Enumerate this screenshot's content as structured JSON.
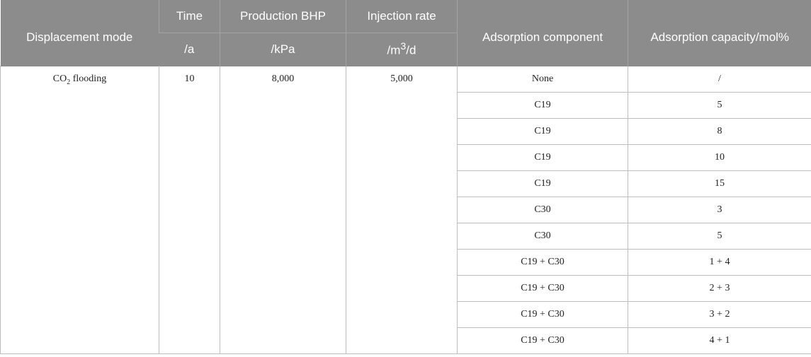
{
  "table": {
    "headers": {
      "displacement_mode": "Displacement mode",
      "time": "Time",
      "time_unit": "/a",
      "production_bhp": "Production BHP",
      "production_bhp_unit": "/kPa",
      "injection_rate": "Injection rate",
      "injection_rate_unit_pre": "/m",
      "injection_rate_unit_sup": "3",
      "injection_rate_unit_post": "/d",
      "adsorption_component": "Adsorption component",
      "adsorption_capacity": "Adsorption capacity/mol%"
    },
    "mode_pre": "CO",
    "mode_sub": "2",
    "mode_post": " flooding",
    "time_value": "10",
    "bhp_value": "8,000",
    "injection_value": "5,000",
    "rows": [
      {
        "component": "None",
        "capacity": "/"
      },
      {
        "component": "C19",
        "capacity": "5"
      },
      {
        "component": "C19",
        "capacity": "8"
      },
      {
        "component": "C19",
        "capacity": "10"
      },
      {
        "component": "C19",
        "capacity": "15"
      },
      {
        "component": "C30",
        "capacity": "3"
      },
      {
        "component": "C30",
        "capacity": "5"
      },
      {
        "component": "C19 + C30",
        "capacity": "1 + 4"
      },
      {
        "component": "C19 + C30",
        "capacity": "2 + 3"
      },
      {
        "component": "C19 + C30",
        "capacity": "3 + 2"
      },
      {
        "component": "C19 + C30",
        "capacity": "4 + 1"
      }
    ]
  }
}
